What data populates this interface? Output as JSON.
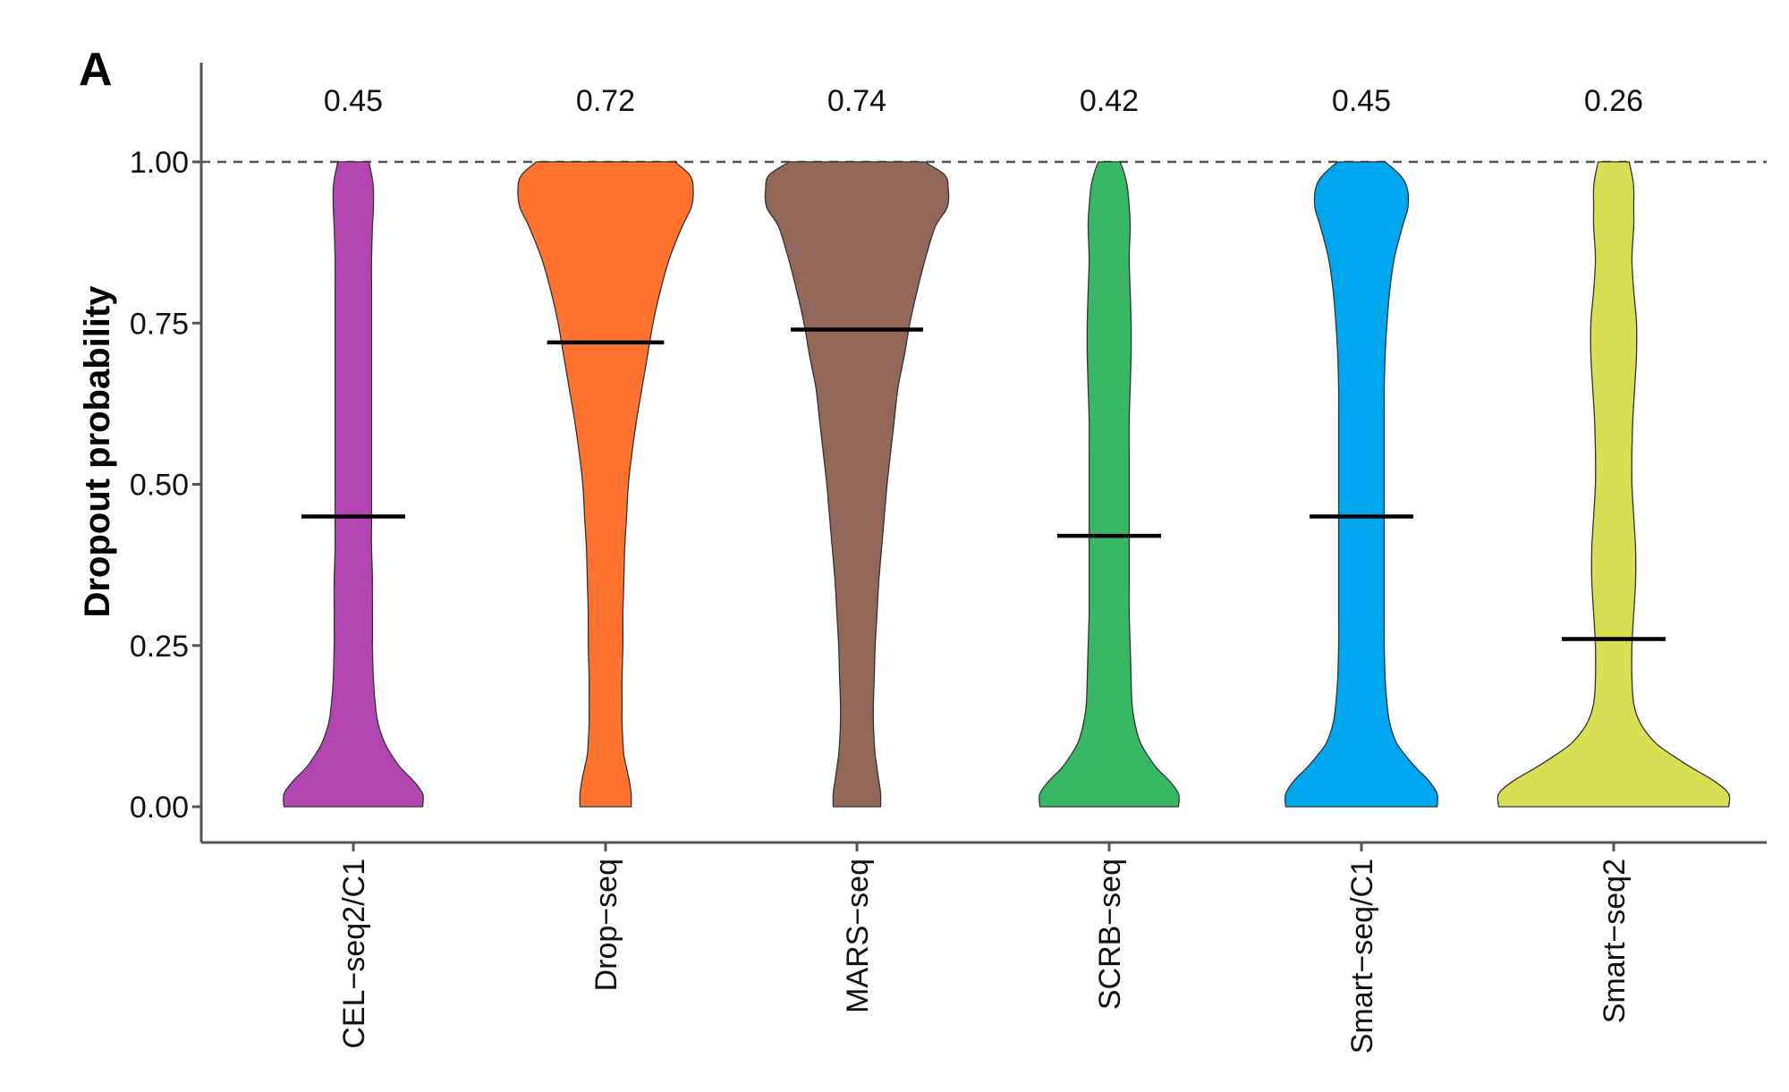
{
  "panel_label": "A",
  "chart_data": {
    "type": "violin",
    "ylabel": "Dropout probability",
    "xlabel": "",
    "ylim": [
      -0.05,
      1.1
    ],
    "y_ticks": [
      0,
      0.25,
      0.5,
      0.75,
      1
    ],
    "y_tick_labels": [
      "0.00",
      "0.25",
      "0.50",
      "0.75",
      "1.00"
    ],
    "reference_line": {
      "y": 1.0,
      "style": "dashed"
    },
    "grid": false,
    "legend": "none",
    "categories": [
      "CEL−seq2/C1",
      "Drop−seq",
      "MARS−seq",
      "SCRB−seq",
      "Smart−seq/C1",
      "Smart−seq2"
    ],
    "median_labels": [
      "0.45",
      "0.72",
      "0.74",
      "0.42",
      "0.45",
      "0.26"
    ],
    "medians": [
      0.45,
      0.72,
      0.74,
      0.42,
      0.45,
      0.26
    ],
    "colors": [
      "#B446B4",
      "#FF7230",
      "#93675A",
      "#38B764",
      "#00A6EE",
      "#D9DF55"
    ],
    "density_y": [
      0,
      0.02,
      0.04,
      0.06,
      0.08,
      0.1,
      0.13,
      0.16,
      0.2,
      0.25,
      0.3,
      0.35,
      0.4,
      0.45,
      0.5,
      0.55,
      0.6,
      0.65,
      0.7,
      0.75,
      0.8,
      0.85,
      0.9,
      0.93,
      0.96,
      0.98,
      1.0
    ],
    "densities": [
      [
        0.76,
        0.76,
        0.66,
        0.52,
        0.42,
        0.34,
        0.27,
        0.24,
        0.22,
        0.21,
        0.21,
        0.21,
        0.2,
        0.2,
        0.2,
        0.2,
        0.2,
        0.2,
        0.2,
        0.2,
        0.2,
        0.2,
        0.21,
        0.22,
        0.22,
        0.2,
        0.17
      ],
      [
        0.28,
        0.28,
        0.26,
        0.23,
        0.2,
        0.19,
        0.18,
        0.18,
        0.18,
        0.19,
        0.19,
        0.2,
        0.21,
        0.23,
        0.25,
        0.29,
        0.34,
        0.4,
        0.46,
        0.52,
        0.6,
        0.7,
        0.84,
        0.94,
        0.96,
        0.92,
        0.76
      ],
      [
        0.26,
        0.26,
        0.24,
        0.22,
        0.2,
        0.19,
        0.18,
        0.18,
        0.19,
        0.2,
        0.22,
        0.24,
        0.27,
        0.3,
        0.33,
        0.37,
        0.41,
        0.45,
        0.52,
        0.58,
        0.66,
        0.75,
        0.86,
        0.99,
        1.0,
        0.96,
        0.74
      ],
      [
        0.76,
        0.76,
        0.66,
        0.52,
        0.42,
        0.34,
        0.28,
        0.25,
        0.24,
        0.23,
        0.22,
        0.22,
        0.22,
        0.22,
        0.22,
        0.22,
        0.22,
        0.23,
        0.24,
        0.24,
        0.23,
        0.22,
        0.23,
        0.22,
        0.2,
        0.17,
        0.12
      ],
      [
        0.83,
        0.83,
        0.74,
        0.6,
        0.48,
        0.38,
        0.31,
        0.28,
        0.26,
        0.25,
        0.25,
        0.25,
        0.25,
        0.25,
        0.25,
        0.25,
        0.25,
        0.25,
        0.26,
        0.28,
        0.31,
        0.36,
        0.45,
        0.51,
        0.5,
        0.42,
        0.26
      ],
      [
        1.26,
        1.26,
        1.1,
        0.86,
        0.64,
        0.45,
        0.29,
        0.22,
        0.2,
        0.2,
        0.22,
        0.24,
        0.24,
        0.22,
        0.2,
        0.2,
        0.21,
        0.23,
        0.25,
        0.25,
        0.22,
        0.2,
        0.22,
        0.22,
        0.22,
        0.2,
        0.17
      ]
    ]
  }
}
